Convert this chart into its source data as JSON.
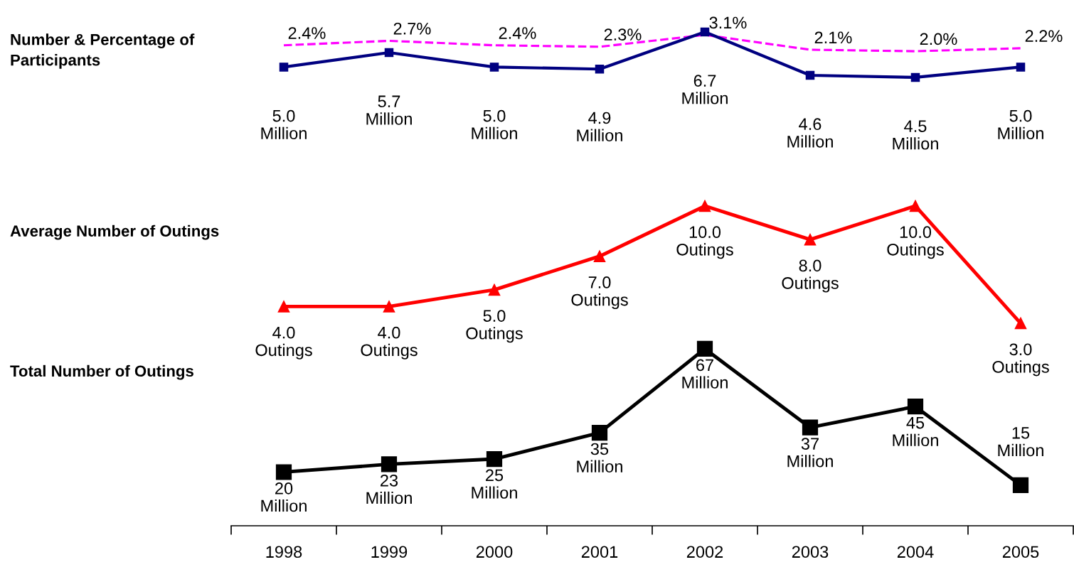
{
  "chart_data": [
    {
      "type": "line",
      "title": "Number & Percentage of\nParticipants",
      "categories": [
        "1998",
        "1999",
        "2000",
        "2001",
        "2002",
        "2003",
        "2004",
        "2005"
      ],
      "tick_labels": false,
      "series": [
        {
          "color": "#000080",
          "marker": "square",
          "line_style": "solid",
          "values": [
            5.0,
            5.7,
            5.0,
            4.9,
            6.7,
            4.6,
            4.5,
            5.0
          ],
          "value_labels": [
            "5.0\nMillion",
            "5.7\nMillion",
            "5.0\nMillion",
            "4.9\nMillion",
            "6.7\nMillion",
            "4.6\nMillion",
            "4.5\nMillion",
            "5.0\nMillion"
          ]
        },
        {
          "color": "#ff00ff",
          "line_style": "dashed",
          "axis": "y2",
          "values": [
            2.4,
            2.7,
            2.4,
            2.3,
            3.1,
            2.1,
            2.0,
            2.2
          ],
          "value_labels": [
            "2.4%",
            "2.7%",
            "2.4%",
            "2.3%",
            "3.1%",
            "2.1%",
            "2.0%",
            "2.2%"
          ]
        }
      ]
    },
    {
      "type": "line",
      "title": "Average Number of Outings",
      "categories": [
        "1998",
        "1999",
        "2000",
        "2001",
        "2002",
        "2003",
        "2004",
        "2005"
      ],
      "tick_labels": false,
      "series": [
        {
          "color": "#ff0000",
          "marker": "triangle",
          "line_style": "solid",
          "values": [
            4.0,
            4.0,
            5.0,
            7.0,
            10.0,
            8.0,
            10.0,
            3.0
          ],
          "value_labels": [
            "4.0\nOutings",
            "4.0\nOutings",
            "5.0\nOutings",
            "7.0\nOutings",
            "10.0\nOutings",
            "8.0\nOutings",
            "10.0\nOutings",
            "3.0\nOutings"
          ]
        }
      ]
    },
    {
      "type": "line",
      "title": "Total Number of Outings",
      "categories": [
        "1998",
        "1999",
        "2000",
        "2001",
        "2002",
        "2003",
        "2004",
        "2005"
      ],
      "tick_labels": "x",
      "series": [
        {
          "color": "#000000",
          "marker": "square",
          "line_style": "solid",
          "values": [
            20,
            23,
            25,
            35,
            67,
            37,
            45,
            15
          ],
          "value_labels": [
            "20\nMillion",
            "23\nMillion",
            "25\nMillion",
            "35\nMillion",
            "67\nMillion",
            "37\nMillion",
            "45\nMillion",
            "15\nMillion"
          ]
        }
      ]
    }
  ]
}
